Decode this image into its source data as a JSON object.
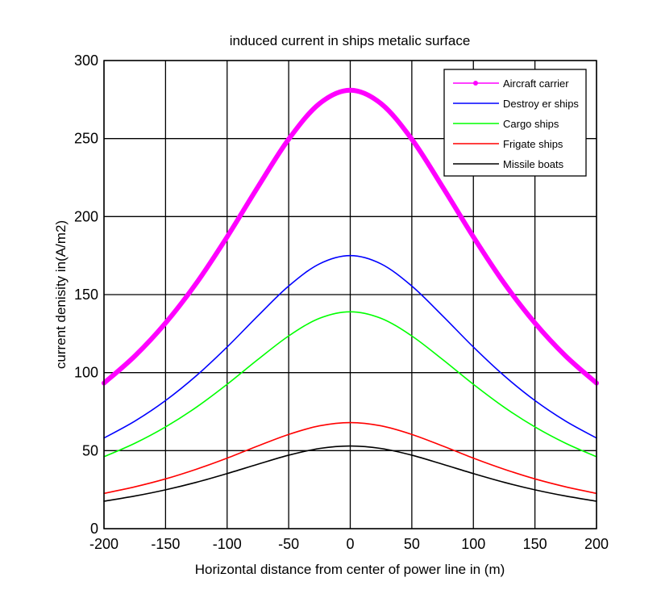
{
  "chart_data": {
    "type": "line",
    "title": "induced current in ships metalic surface",
    "xlabel": "Horizontal distance from center of power line in (m)",
    "ylabel": "current denisity in(A/m2)",
    "xlim": [
      -200,
      200
    ],
    "ylim": [
      0,
      300
    ],
    "xticks": [
      -200,
      -150,
      -100,
      -50,
      0,
      50,
      100,
      150,
      200
    ],
    "yticks": [
      0,
      50,
      100,
      150,
      200,
      250,
      300
    ],
    "grid": true,
    "legend_position": "top-right",
    "x": [
      -200,
      -175,
      -150,
      -125,
      -100,
      -75,
      -50,
      -25,
      0,
      25,
      50,
      75,
      100,
      125,
      150,
      175,
      200
    ],
    "series": [
      {
        "name": "Aircraft carrier",
        "color": "#ff00ff",
        "marker": "dot",
        "values": [
          93.3,
          110.6,
          131.8,
          157.3,
          187.0,
          219.0,
          249.6,
          272.4,
          281,
          272.4,
          249.6,
          219.0,
          187.0,
          157.3,
          131.8,
          110.6,
          93.3
        ]
      },
      {
        "name": "Destroy er ships",
        "color": "#0000ff",
        "values": [
          58.1,
          68.9,
          82.1,
          98.0,
          116.4,
          136.4,
          155.5,
          169.7,
          175,
          169.7,
          155.5,
          136.4,
          116.4,
          98.0,
          82.1,
          68.9,
          58.1
        ]
      },
      {
        "name": "Cargo ships",
        "color": "#00ff00",
        "values": [
          46.1,
          54.7,
          65.2,
          77.8,
          92.5,
          108.4,
          123.5,
          134.8,
          139,
          134.8,
          123.5,
          108.4,
          92.5,
          77.8,
          65.2,
          54.7,
          46.1
        ]
      },
      {
        "name": "Frigate ships",
        "color": "#ff0000",
        "values": [
          22.6,
          26.8,
          31.9,
          38.1,
          45.2,
          53.0,
          60.4,
          65.9,
          68,
          65.9,
          60.4,
          53.0,
          45.2,
          38.1,
          31.9,
          26.8,
          22.6
        ]
      },
      {
        "name": "Missile boats",
        "color": "#000000",
        "values": [
          17.6,
          20.9,
          24.9,
          29.7,
          35.3,
          41.3,
          47.1,
          51.4,
          53,
          51.4,
          47.1,
          41.3,
          35.3,
          29.7,
          24.9,
          20.9,
          17.6
        ]
      }
    ]
  }
}
